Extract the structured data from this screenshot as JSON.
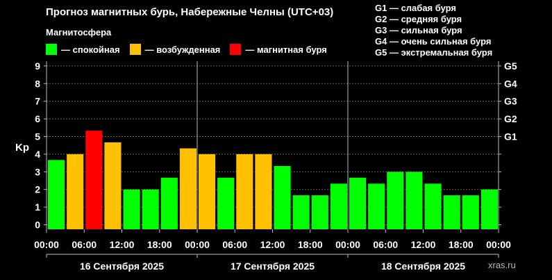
{
  "title": "Прогноз магнитных бурь, Набережные Челны (UTC+03)",
  "subtitle": "Магнитосфера",
  "legend": [
    {
      "label": "— спокойная",
      "color": "#00ff00"
    },
    {
      "label": "— возбужденная",
      "color": "#ffc000"
    },
    {
      "label": "— магнитная буря",
      "color": "#ff0000"
    }
  ],
  "storm_levels": [
    "G1 — слабая буря",
    "G2 — средняя буря",
    "G3 — сильная буря",
    "G4 — очень сильная буря",
    "G5 — экстремальная буря"
  ],
  "watermark": "xras.ru",
  "chart_data": {
    "type": "bar",
    "ylabel": "Kp",
    "ylim": [
      0,
      9
    ],
    "yticks": [
      "0",
      "1",
      "2",
      "3",
      "4",
      "5",
      "6",
      "7",
      "8",
      "9"
    ],
    "right_ticks": [
      {
        "label": "G1",
        "value": 5
      },
      {
        "label": "G2",
        "value": 6
      },
      {
        "label": "G3",
        "value": 7
      },
      {
        "label": "G4",
        "value": 8
      },
      {
        "label": "G5",
        "value": 9
      }
    ],
    "xtick_labels": [
      "00:00",
      "06:00",
      "12:00",
      "18:00",
      "00:00",
      "06:00",
      "12:00",
      "18:00",
      "00:00",
      "06:00",
      "12:00",
      "18:00",
      "00:00"
    ],
    "days": [
      "16 Сентября 2025",
      "17 Сентября 2025",
      "18 Сентября 2025"
    ],
    "values": [
      3.67,
      4.0,
      5.33,
      4.67,
      2.0,
      2.0,
      2.67,
      4.33,
      4.0,
      2.67,
      4.0,
      4.0,
      3.33,
      1.67,
      1.67,
      2.33,
      2.67,
      2.33,
      3.0,
      3.0,
      2.33,
      1.67,
      1.67,
      2.0
    ],
    "colors": {
      "quiet": "#00ff00",
      "active": "#ffc000",
      "storm": "#ff0000"
    },
    "grid": true
  }
}
